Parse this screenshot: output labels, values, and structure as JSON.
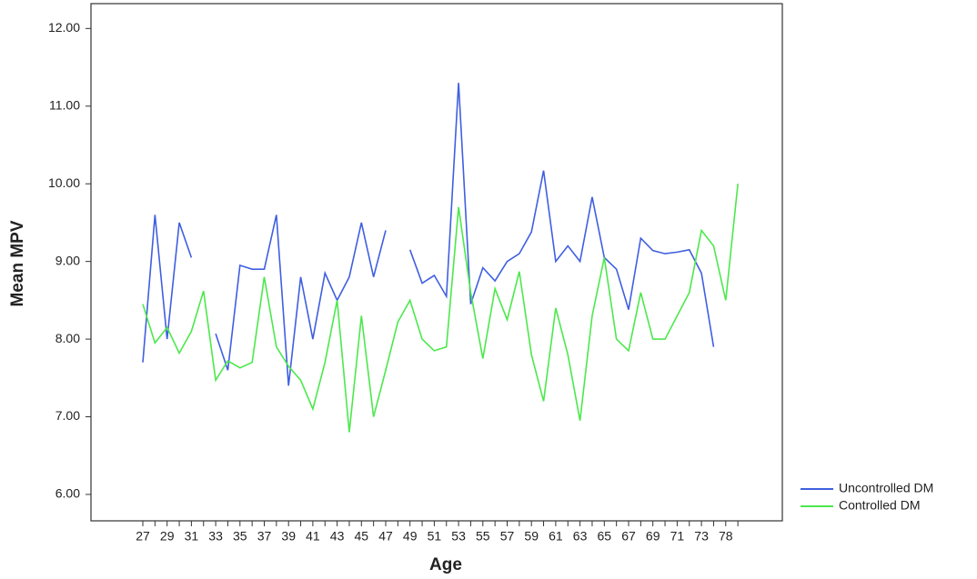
{
  "chart_data": {
    "type": "line",
    "xlabel": "Age",
    "ylabel": "Mean MPV",
    "categories": [
      "27",
      "28",
      "29",
      "30",
      "31",
      "32",
      "33",
      "34",
      "35",
      "36",
      "37",
      "38",
      "39",
      "40",
      "41",
      "42",
      "43",
      "44",
      "45",
      "46",
      "47",
      "48",
      "49",
      "50",
      "51",
      "52",
      "53",
      "54",
      "55",
      "56",
      "57",
      "58",
      "59",
      "60",
      "61",
      "62",
      "63",
      "64",
      "65",
      "66",
      "67",
      "68",
      "69",
      "70",
      "71",
      "72",
      "73",
      null,
      "78",
      null
    ],
    "label_every": 2,
    "ylim": [
      5.66,
      12.32
    ],
    "yticks": [
      {
        "value": 6,
        "label": "6.00"
      },
      {
        "value": 7,
        "label": "7.00"
      },
      {
        "value": 8,
        "label": "8.00"
      },
      {
        "value": 9,
        "label": "9.00"
      },
      {
        "value": 10,
        "label": "10.00"
      },
      {
        "value": 11,
        "label": "11.00"
      },
      {
        "value": 12,
        "label": "12.00"
      }
    ],
    "legend": "lower right",
    "series": [
      {
        "name": "Uncontrolled DM",
        "color": "#3f5fe0",
        "values": [
          7.7,
          9.6,
          8.0,
          9.5,
          9.05,
          null,
          8.07,
          7.6,
          8.95,
          8.9,
          8.9,
          9.6,
          7.4,
          8.8,
          8.0,
          8.85,
          8.5,
          8.8,
          9.5,
          8.8,
          9.4,
          null,
          9.15,
          8.72,
          8.82,
          8.55,
          11.3,
          8.45,
          8.92,
          8.75,
          9.0,
          9.1,
          9.38,
          10.17,
          9.0,
          9.2,
          9.0,
          9.83,
          9.05,
          8.9,
          8.38,
          9.3,
          9.14,
          9.1,
          9.12,
          9.15,
          8.85,
          7.9,
          null,
          null
        ]
      },
      {
        "name": "Controlled DM",
        "color": "#4ce84c",
        "values": [
          8.45,
          7.95,
          8.15,
          7.82,
          8.1,
          8.62,
          7.47,
          7.72,
          7.63,
          7.7,
          8.8,
          7.9,
          7.65,
          7.47,
          7.1,
          7.7,
          8.5,
          6.8,
          8.3,
          7.0,
          7.6,
          8.22,
          8.5,
          8.0,
          7.85,
          7.9,
          9.7,
          8.6,
          7.75,
          8.65,
          8.25,
          8.87,
          7.8,
          7.2,
          8.4,
          7.8,
          6.95,
          8.3,
          9.05,
          8.0,
          7.85,
          8.6,
          8.0,
          8.0,
          8.3,
          8.6,
          9.4,
          9.2,
          8.5,
          10.0
        ]
      }
    ]
  }
}
